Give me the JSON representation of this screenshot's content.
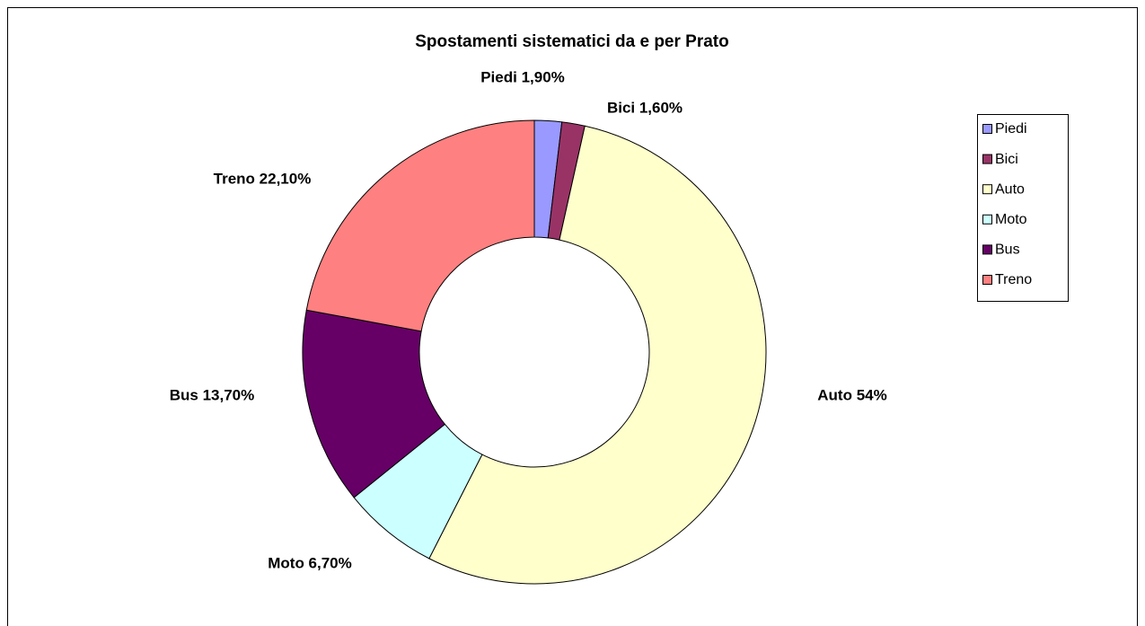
{
  "chart_data": {
    "type": "donut",
    "title": "Spostamenti sistematici da e per Prato",
    "categories": [
      "Piedi",
      "Bici",
      "Auto",
      "Moto",
      "Bus",
      "Treno"
    ],
    "values": [
      1.9,
      1.6,
      54,
      6.7,
      13.7,
      22.1
    ],
    "value_labels": [
      "Piedi 1,90%",
      "Bici 1,60%",
      "Auto 54%",
      "Moto 6,70%",
      "Bus 13,70%",
      "Treno 22,10%"
    ],
    "colors": [
      "#9999ff",
      "#993366",
      "#ffffcc",
      "#ccffff",
      "#660066",
      "#ff8080"
    ],
    "legend": "right"
  }
}
